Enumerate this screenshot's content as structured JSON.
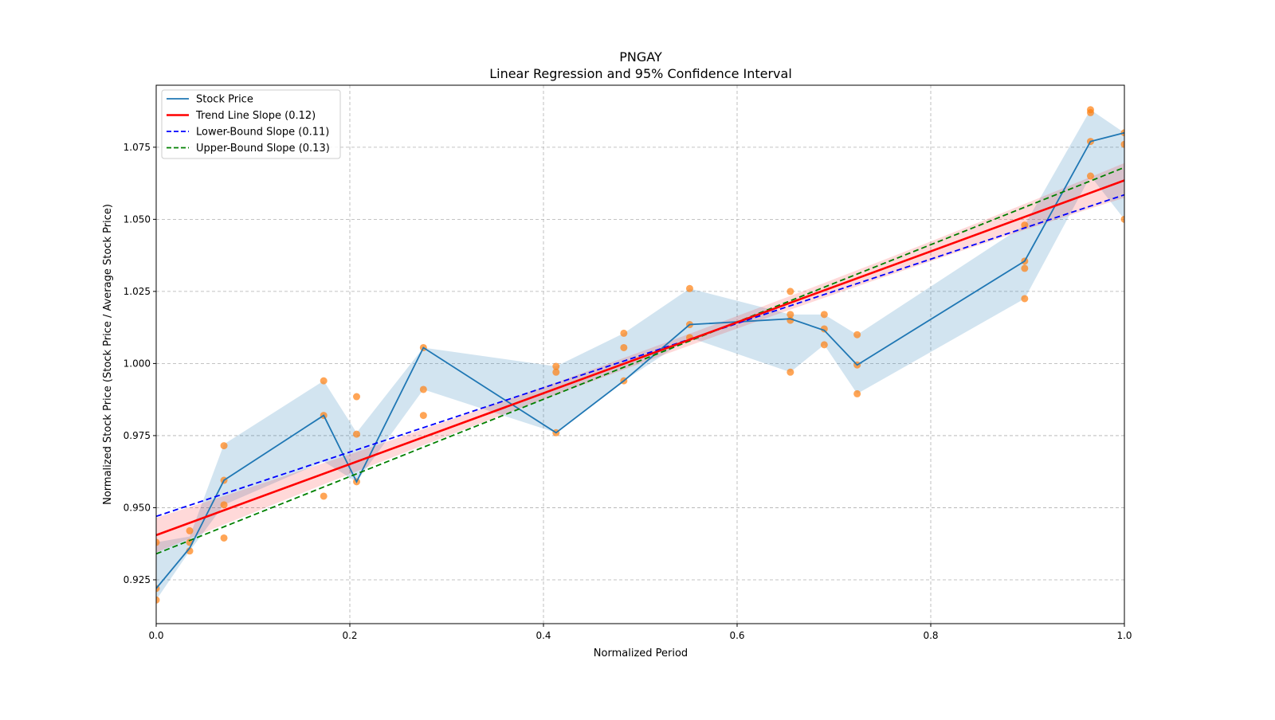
{
  "chart_data": {
    "type": "line",
    "title": "PNGAY",
    "subtitle": "Linear Regression and 95% Confidence Interval",
    "xlabel": "Normalized Period",
    "ylabel": "Normalized Stock Price (Stock Price / Average Stock Price)",
    "xlim": [
      0,
      1
    ],
    "ylim": [
      0.9098,
      1.0965
    ],
    "grid": true,
    "legend_position": "top-left",
    "xticks": [
      0.0,
      0.2,
      0.4,
      0.6,
      0.8,
      1.0
    ],
    "xtick_labels": [
      "0.0",
      "0.2",
      "0.4",
      "0.6",
      "0.8",
      "1.0"
    ],
    "yticks": [
      0.925,
      0.95,
      0.975,
      1.0,
      1.025,
      1.05,
      1.075
    ],
    "ytick_labels": [
      "0.925",
      "0.950",
      "0.975",
      "1.000",
      "1.025",
      "1.050",
      "1.075"
    ],
    "legend": [
      {
        "label": "Stock Price",
        "color": "#1f77b4",
        "style": "solid"
      },
      {
        "label": "Trend Line Slope (0.12)",
        "color": "#ff0000",
        "style": "solid"
      },
      {
        "label": "Lower-Bound Slope (0.11)",
        "color": "#0000ff",
        "style": "dashed"
      },
      {
        "label": "Upper-Bound Slope (0.13)",
        "color": "#008000",
        "style": "dashed"
      }
    ],
    "stock_price": {
      "x": [
        0,
        0.0346,
        0.07,
        0.173,
        0.207,
        0.276,
        0.413,
        0.483,
        0.551,
        0.655,
        0.69,
        0.724,
        0.897,
        0.965,
        1.0
      ],
      "y": [
        0.922,
        0.936,
        0.9595,
        0.982,
        0.959,
        1.0055,
        0.976,
        0.994,
        1.0135,
        1.0155,
        1.0115,
        0.9995,
        1.0355,
        1.077,
        1.08
      ],
      "ci_upper": [
        0.938,
        0.94,
        0.972,
        0.994,
        0.976,
        1.0055,
        0.999,
        1.0105,
        1.026,
        1.017,
        1.017,
        1.01,
        1.048,
        1.088,
        1.08
      ],
      "ci_lower": [
        0.918,
        0.935,
        0.951,
        0.966,
        0.959,
        0.991,
        0.976,
        0.994,
        1.009,
        0.997,
        1.0065,
        0.9895,
        1.0225,
        1.065,
        1.05
      ],
      "color": "#1f77b4"
    },
    "scatter": [
      [
        0,
        0.938
      ],
      [
        0,
        0.922
      ],
      [
        0,
        0.918
      ],
      [
        0.0346,
        0.942
      ],
      [
        0.0346,
        0.938
      ],
      [
        0.0346,
        0.935
      ],
      [
        0.07,
        0.9715
      ],
      [
        0.07,
        0.9595
      ],
      [
        0.07,
        0.951
      ],
      [
        0.07,
        0.9395
      ],
      [
        0.173,
        0.994
      ],
      [
        0.173,
        0.982
      ],
      [
        0.173,
        0.954
      ],
      [
        0.207,
        0.9885
      ],
      [
        0.207,
        0.9755
      ],
      [
        0.207,
        0.959
      ],
      [
        0.276,
        1.0055
      ],
      [
        0.276,
        0.991
      ],
      [
        0.276,
        0.982
      ],
      [
        0.413,
        0.999
      ],
      [
        0.413,
        0.997
      ],
      [
        0.413,
        0.976
      ],
      [
        0.483,
        1.0105
      ],
      [
        0.483,
        1.0055
      ],
      [
        0.483,
        0.994
      ],
      [
        0.551,
        1.026
      ],
      [
        0.551,
        1.0135
      ],
      [
        0.551,
        1.009
      ],
      [
        0.655,
        1.025
      ],
      [
        0.655,
        1.017
      ],
      [
        0.655,
        1.015
      ],
      [
        0.655,
        0.997
      ],
      [
        0.69,
        1.017
      ],
      [
        0.69,
        1.012
      ],
      [
        0.69,
        1.0065
      ],
      [
        0.724,
        1.01
      ],
      [
        0.724,
        0.9995
      ],
      [
        0.724,
        0.9895
      ],
      [
        0.897,
        1.048
      ],
      [
        0.897,
        1.0355
      ],
      [
        0.897,
        1.033
      ],
      [
        0.897,
        1.0225
      ],
      [
        0.965,
        1.088
      ],
      [
        0.965,
        1.087
      ],
      [
        0.965,
        1.077
      ],
      [
        0.965,
        1.065
      ],
      [
        1.0,
        1.08
      ],
      [
        1.0,
        1.076
      ],
      [
        1.0,
        1.05
      ]
    ],
    "scatter_color": "#ff7f0e",
    "trend_line": {
      "intercept": 0.9405,
      "slope": 0.123,
      "ci_halfwidth_end": 0.006,
      "ci_halfwidth_mid": 0.002,
      "color": "#ff0000"
    },
    "lower_bound_line": {
      "intercept": 0.947,
      "slope": 0.1115,
      "color": "#0000ff"
    },
    "upper_bound_line": {
      "intercept": 0.934,
      "slope": 0.134,
      "color": "#008000"
    }
  }
}
